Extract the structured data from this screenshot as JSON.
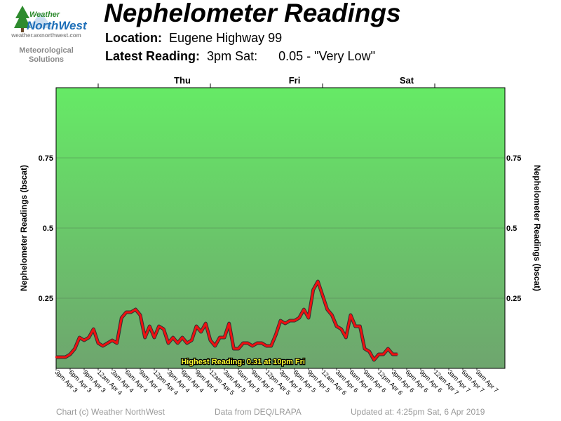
{
  "header": {
    "logo_word1": "Weather",
    "logo_word2": "NorthWest",
    "logo_url": "weather.wxnorthwest.com",
    "logo_sub1": "Meteorological",
    "logo_sub2": "Solutions",
    "title": "Nephelometer Readings",
    "location_label": "Location:",
    "location_value": "Eugene Highway 99",
    "latest_label": "Latest Reading:",
    "latest_time": "3pm Sat:",
    "latest_value": "0.05 - \"Very Low\""
  },
  "footer": {
    "copyright": "Chart (c) Weather NorthWest",
    "source": "Data from DEQ/LRAPA",
    "updated": "Updated at: 4:25pm Sat, 6 Apr 2019"
  },
  "colors": {
    "band_top": "#66ea66",
    "band_bottom": "#6ea56e",
    "line": "#ee1111",
    "line_shadow": "#333333",
    "annotation_text": "#ffff33"
  },
  "chart_data": {
    "type": "line",
    "ylabel_left": "Nephelometer Readings (bscat)",
    "ylabel_right": "Nephelometer Readings (bscat)",
    "ylim": [
      0,
      1.0
    ],
    "yticks": [
      {
        "value": 0.25,
        "label": "0.25"
      },
      {
        "value": 0.5,
        "label": "0.5"
      },
      {
        "value": 0.75,
        "label": "0.75"
      }
    ],
    "grid": true,
    "day_labels": [
      {
        "label": "Thu",
        "hour": 27
      },
      {
        "label": "Fri",
        "hour": 51
      },
      {
        "label": "Sat",
        "hour": 75
      }
    ],
    "day_boundaries": [
      9,
      33,
      57,
      81
    ],
    "x_start_hour": 0,
    "x_end_hour": 96,
    "xtick_labels": [
      "3pm Apr 3",
      "6pm Apr 3",
      "9pm Apr 3",
      "12am Apr 4",
      "3am Apr 4",
      "6am Apr 4",
      "9am Apr 4",
      "12pm Apr 4",
      "3pm Apr 4",
      "6pm Apr 4",
      "9pm Apr 4",
      "12am Apr 5",
      "3am Apr 5",
      "6am Apr 5",
      "9am Apr 5",
      "12pm Apr 5",
      "3pm Apr 5",
      "6pm Apr 5",
      "9pm Apr 5",
      "12am Apr 6",
      "3am Apr 6",
      "6am Apr 6",
      "9am Apr 6",
      "12pm Apr 6",
      "3pm Apr 6",
      "6pm Apr 6",
      "9pm Apr 6",
      "12am Apr 7",
      "3am Apr 7",
      "6am Apr 7",
      "9am Apr 7"
    ],
    "annotation": "Highest Reading: 0.31 at 10pm Fri",
    "series": [
      {
        "values": [
          0.04,
          0.04,
          0.04,
          0.05,
          0.07,
          0.11,
          0.1,
          0.11,
          0.14,
          0.09,
          0.08,
          0.09,
          0.1,
          0.09,
          0.18,
          0.2,
          0.2,
          0.21,
          0.19,
          0.11,
          0.15,
          0.11,
          0.15,
          0.14,
          0.09,
          0.11,
          0.09,
          0.11,
          0.09,
          0.1,
          0.15,
          0.13,
          0.16,
          0.1,
          0.08,
          0.11,
          0.11,
          0.16,
          0.07,
          0.07,
          0.09,
          0.09,
          0.08,
          0.09,
          0.09,
          0.08,
          0.08,
          0.12,
          0.17,
          0.16,
          0.17,
          0.17,
          0.18,
          0.21,
          0.18,
          0.28,
          0.31,
          0.26,
          0.21,
          0.19,
          0.15,
          0.14,
          0.11,
          0.19,
          0.15,
          0.15,
          0.07,
          0.06,
          0.03,
          0.05,
          0.05,
          0.07,
          0.05,
          0.05
        ]
      }
    ]
  }
}
